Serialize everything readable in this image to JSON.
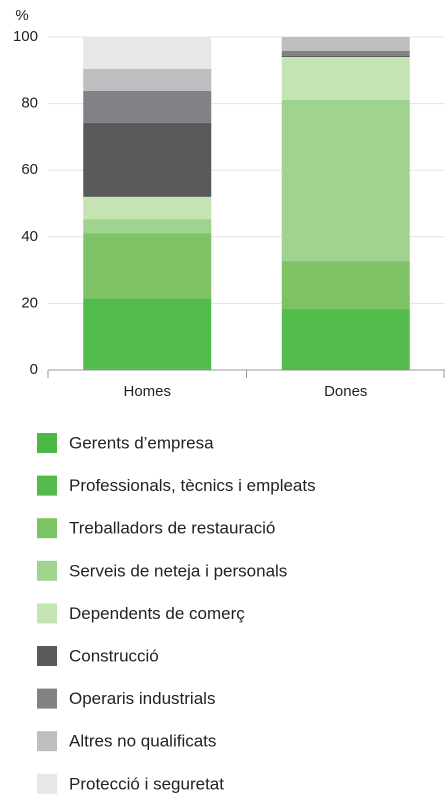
{
  "chart_data": {
    "type": "stacked_bar",
    "y_label": "%",
    "categories": [
      "Homes",
      "Dones"
    ],
    "series": [
      {
        "name": "Gerents d’empresa",
        "color": "#4cb848",
        "values": [
          0.5,
          0.3
        ]
      },
      {
        "name": "Professionals, tècnics i empleats",
        "color": "#53bb4b",
        "values": [
          21,
          18
        ]
      },
      {
        "name": "Treballadors de restauració",
        "color": "#7dc366",
        "values": [
          19.6,
          14.4
        ]
      },
      {
        "name": "Serveis de neteja i personals",
        "color": "#a0d38d",
        "values": [
          4.2,
          48.4
        ]
      },
      {
        "name": "Dependents de comerç",
        "color": "#c4e4b4",
        "values": [
          6.7,
          12.9
        ]
      },
      {
        "name": "Construcció",
        "color": "#58595b",
        "values": [
          22.2,
          0.3
        ]
      },
      {
        "name": "Operaris industrials",
        "color": "#808285",
        "values": [
          9.6,
          1.5
        ]
      },
      {
        "name": "Altres no qualificats",
        "color": "#bcbec0",
        "values": [
          6.6,
          4.2
        ]
      },
      {
        "name": "Protecció i seguretat",
        "color": "#e6e7e8",
        "values": [
          9.6,
          0
        ]
      }
    ],
    "ylim": [
      0,
      100
    ],
    "yticks": [
      0,
      20,
      40,
      60,
      80,
      100
    ],
    "grid": true
  }
}
